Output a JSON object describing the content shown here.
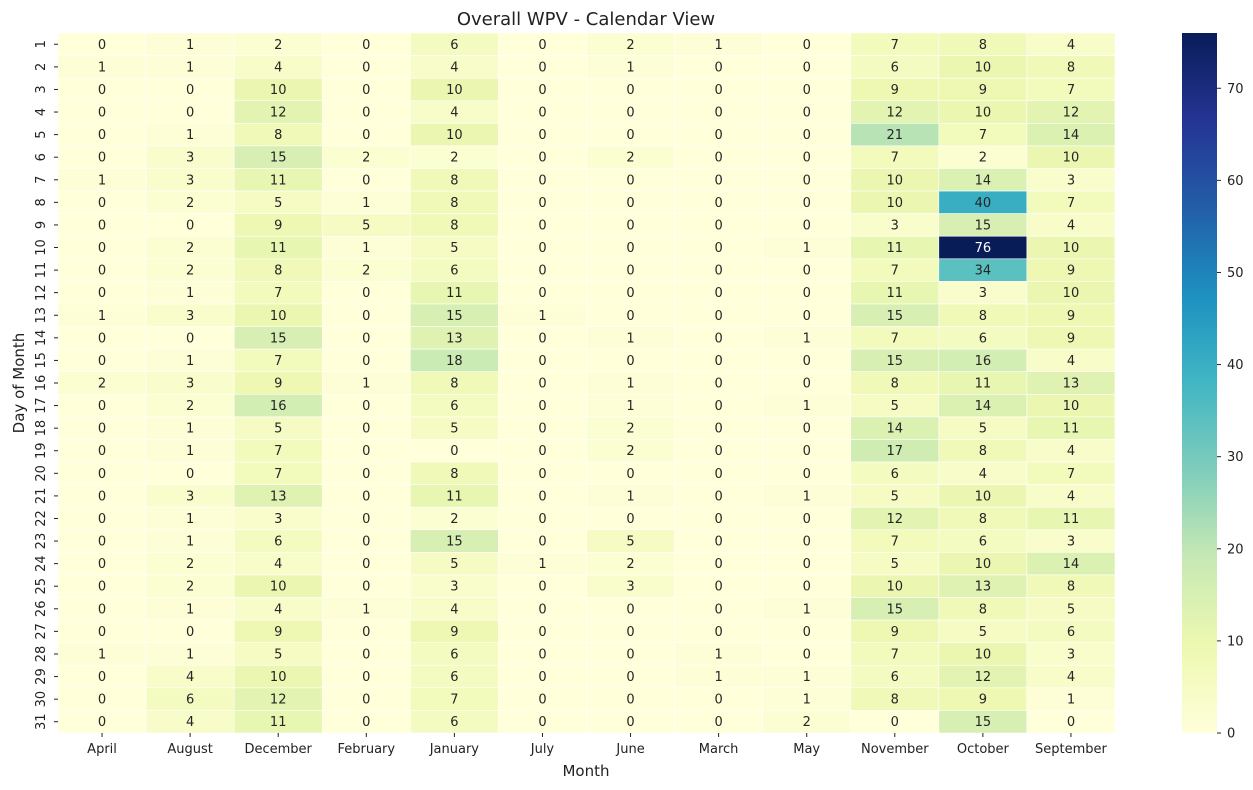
{
  "chart_data": {
    "type": "heatmap",
    "title": "Overall WPV - Calendar View",
    "xlabel": "Month",
    "ylabel": "Day of Month",
    "x_categories": [
      "April",
      "August",
      "December",
      "February",
      "January",
      "July",
      "June",
      "March",
      "May",
      "November",
      "October",
      "September"
    ],
    "y_categories": [
      "1",
      "2",
      "3",
      "4",
      "5",
      "6",
      "7",
      "8",
      "9",
      "10",
      "11",
      "12",
      "13",
      "14",
      "15",
      "16",
      "17",
      "18",
      "19",
      "20",
      "21",
      "22",
      "23",
      "24",
      "25",
      "26",
      "27",
      "28",
      "29",
      "30",
      "31"
    ],
    "values": [
      [
        0,
        1,
        2,
        0,
        6,
        0,
        2,
        1,
        0,
        7,
        8,
        4
      ],
      [
        1,
        1,
        4,
        0,
        4,
        0,
        1,
        0,
        0,
        6,
        10,
        8
      ],
      [
        0,
        0,
        10,
        0,
        10,
        0,
        0,
        0,
        0,
        9,
        9,
        7
      ],
      [
        0,
        0,
        12,
        0,
        4,
        0,
        0,
        0,
        0,
        12,
        10,
        12
      ],
      [
        0,
        1,
        8,
        0,
        10,
        0,
        0,
        0,
        0,
        21,
        7,
        14
      ],
      [
        0,
        3,
        15,
        2,
        2,
        0,
        2,
        0,
        0,
        7,
        2,
        10
      ],
      [
        1,
        3,
        11,
        0,
        8,
        0,
        0,
        0,
        0,
        10,
        14,
        3
      ],
      [
        0,
        2,
        5,
        1,
        8,
        0,
        0,
        0,
        0,
        10,
        40,
        7
      ],
      [
        0,
        0,
        9,
        5,
        8,
        0,
        0,
        0,
        0,
        3,
        15,
        4
      ],
      [
        0,
        2,
        11,
        1,
        5,
        0,
        0,
        0,
        1,
        11,
        76,
        10
      ],
      [
        0,
        2,
        8,
        2,
        6,
        0,
        0,
        0,
        0,
        7,
        34,
        9
      ],
      [
        0,
        1,
        7,
        0,
        11,
        0,
        0,
        0,
        0,
        11,
        3,
        10
      ],
      [
        1,
        3,
        10,
        0,
        15,
        1,
        0,
        0,
        0,
        15,
        8,
        9
      ],
      [
        0,
        0,
        15,
        0,
        13,
        0,
        1,
        0,
        1,
        7,
        6,
        9
      ],
      [
        0,
        1,
        7,
        0,
        18,
        0,
        0,
        0,
        0,
        15,
        16,
        4
      ],
      [
        2,
        3,
        9,
        1,
        8,
        0,
        1,
        0,
        0,
        8,
        11,
        13
      ],
      [
        0,
        2,
        16,
        0,
        6,
        0,
        1,
        0,
        1,
        5,
        14,
        10
      ],
      [
        0,
        1,
        5,
        0,
        5,
        0,
        2,
        0,
        0,
        14,
        5,
        11
      ],
      [
        0,
        1,
        7,
        0,
        0,
        0,
        2,
        0,
        0,
        17,
        8,
        4
      ],
      [
        0,
        0,
        7,
        0,
        8,
        0,
        0,
        0,
        0,
        6,
        4,
        7
      ],
      [
        0,
        3,
        13,
        0,
        11,
        0,
        1,
        0,
        1,
        5,
        10,
        4
      ],
      [
        0,
        1,
        3,
        0,
        2,
        0,
        0,
        0,
        0,
        12,
        8,
        11
      ],
      [
        0,
        1,
        6,
        0,
        15,
        0,
        5,
        0,
        0,
        7,
        6,
        3
      ],
      [
        0,
        2,
        4,
        0,
        5,
        1,
        2,
        0,
        0,
        5,
        10,
        14
      ],
      [
        0,
        2,
        10,
        0,
        3,
        0,
        3,
        0,
        0,
        10,
        13,
        8
      ],
      [
        0,
        1,
        4,
        1,
        4,
        0,
        0,
        0,
        1,
        15,
        8,
        5
      ],
      [
        0,
        0,
        9,
        0,
        9,
        0,
        0,
        0,
        0,
        9,
        5,
        6
      ],
      [
        1,
        1,
        5,
        0,
        6,
        0,
        0,
        1,
        0,
        7,
        10,
        3
      ],
      [
        0,
        4,
        10,
        0,
        6,
        0,
        0,
        1,
        1,
        6,
        12,
        4
      ],
      [
        0,
        6,
        12,
        0,
        7,
        0,
        0,
        0,
        1,
        8,
        9,
        1
      ],
      [
        0,
        4,
        11,
        0,
        6,
        0,
        0,
        0,
        2,
        0,
        15,
        0
      ]
    ],
    "colorbar": {
      "min": 0,
      "max": 76,
      "ticks": [
        0,
        10,
        20,
        30,
        40,
        50,
        60,
        70
      ]
    },
    "colormap": "YlGnBu",
    "grid": false,
    "cell_border_color": "#ffffff"
  }
}
